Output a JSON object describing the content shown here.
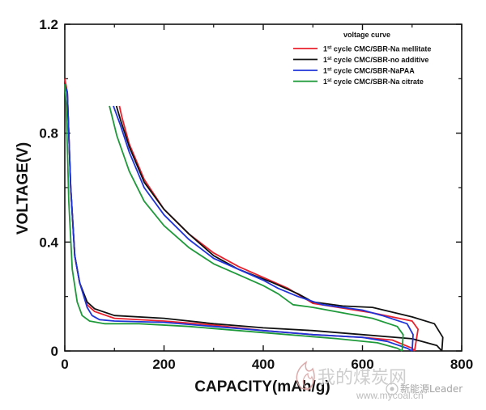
{
  "chart_data": {
    "type": "line",
    "xlabel": "CAPACITY(mAh/g)",
    "ylabel": "VOLTAGE(V)",
    "xlim": [
      0,
      800
    ],
    "ylim": [
      0,
      1.2
    ],
    "xticks": [
      "0",
      "200",
      "400",
      "600",
      "800"
    ],
    "yticks": [
      "0",
      "0.4",
      "0.8",
      "1.2"
    ],
    "xtick_values": [
      0,
      200,
      400,
      600,
      800
    ],
    "ytick_values": [
      0,
      0.4,
      0.8,
      1.2
    ],
    "legend_title": "voltage curve",
    "legend_placement": "top-right",
    "grid": false,
    "series": [
      {
        "name": "CMC/SBR-Na mellitate",
        "color": "#e8212d",
        "discharge": [
          [
            0,
            1.0
          ],
          [
            5,
            0.95
          ],
          [
            12,
            0.6
          ],
          [
            20,
            0.35
          ],
          [
            30,
            0.25
          ],
          [
            45,
            0.17
          ],
          [
            60,
            0.145
          ],
          [
            100,
            0.12
          ],
          [
            200,
            0.11
          ],
          [
            300,
            0.095
          ],
          [
            400,
            0.075
          ],
          [
            500,
            0.06
          ],
          [
            600,
            0.05
          ],
          [
            660,
            0.04
          ],
          [
            700,
            0.01
          ],
          [
            705,
            0
          ]
        ],
        "charge": [
          [
            705,
            0
          ],
          [
            712,
            0.08
          ],
          [
            700,
            0.11
          ],
          [
            620,
            0.14
          ],
          [
            500,
            0.175
          ],
          [
            450,
            0.23
          ],
          [
            400,
            0.27
          ],
          [
            350,
            0.31
          ],
          [
            300,
            0.36
          ],
          [
            250,
            0.43
          ],
          [
            200,
            0.52
          ],
          [
            160,
            0.63
          ],
          [
            130,
            0.76
          ],
          [
            115,
            0.86
          ],
          [
            110,
            0.9
          ]
        ]
      },
      {
        "name": "CMC/SBR-no additive",
        "color": "#111111",
        "discharge": [
          [
            0,
            0.98
          ],
          [
            5,
            0.95
          ],
          [
            12,
            0.6
          ],
          [
            20,
            0.35
          ],
          [
            30,
            0.25
          ],
          [
            45,
            0.18
          ],
          [
            60,
            0.155
          ],
          [
            100,
            0.13
          ],
          [
            200,
            0.12
          ],
          [
            300,
            0.1
          ],
          [
            400,
            0.085
          ],
          [
            500,
            0.075
          ],
          [
            600,
            0.06
          ],
          [
            700,
            0.045
          ],
          [
            750,
            0.02
          ],
          [
            760,
            0
          ]
        ],
        "charge": [
          [
            760,
            0
          ],
          [
            762,
            0.05
          ],
          [
            745,
            0.1
          ],
          [
            700,
            0.125
          ],
          [
            620,
            0.16
          ],
          [
            560,
            0.165
          ],
          [
            500,
            0.18
          ],
          [
            470,
            0.21
          ],
          [
            420,
            0.25
          ],
          [
            350,
            0.3
          ],
          [
            300,
            0.35
          ],
          [
            250,
            0.43
          ],
          [
            200,
            0.52
          ],
          [
            160,
            0.62
          ],
          [
            130,
            0.75
          ],
          [
            112,
            0.85
          ],
          [
            104,
            0.9
          ]
        ]
      },
      {
        "name": "CMC/SBR-NaPAA",
        "color": "#1f34d8",
        "discharge": [
          [
            0,
            0.98
          ],
          [
            5,
            0.95
          ],
          [
            12,
            0.6
          ],
          [
            20,
            0.35
          ],
          [
            30,
            0.25
          ],
          [
            45,
            0.16
          ],
          [
            55,
            0.13
          ],
          [
            70,
            0.115
          ],
          [
            100,
            0.11
          ],
          [
            200,
            0.105
          ],
          [
            300,
            0.09
          ],
          [
            400,
            0.075
          ],
          [
            500,
            0.06
          ],
          [
            600,
            0.05
          ],
          [
            650,
            0.035
          ],
          [
            690,
            0.01
          ],
          [
            700,
            0
          ]
        ],
        "charge": [
          [
            700,
            0
          ],
          [
            702,
            0.06
          ],
          [
            690,
            0.1
          ],
          [
            640,
            0.13
          ],
          [
            600,
            0.15
          ],
          [
            520,
            0.17
          ],
          [
            470,
            0.2
          ],
          [
            430,
            0.23
          ],
          [
            400,
            0.26
          ],
          [
            350,
            0.3
          ],
          [
            300,
            0.34
          ],
          [
            250,
            0.41
          ],
          [
            200,
            0.5
          ],
          [
            160,
            0.6
          ],
          [
            130,
            0.73
          ],
          [
            112,
            0.83
          ],
          [
            98,
            0.9
          ]
        ]
      },
      {
        "name": "CMC/SBR-Na citrate",
        "color": "#1f9a3a",
        "discharge": [
          [
            0,
            0.98
          ],
          [
            3,
            0.9
          ],
          [
            8,
            0.55
          ],
          [
            15,
            0.3
          ],
          [
            25,
            0.18
          ],
          [
            35,
            0.13
          ],
          [
            50,
            0.11
          ],
          [
            80,
            0.1
          ],
          [
            150,
            0.1
          ],
          [
            250,
            0.09
          ],
          [
            350,
            0.075
          ],
          [
            450,
            0.06
          ],
          [
            550,
            0.045
          ],
          [
            630,
            0.03
          ],
          [
            670,
            0.01
          ],
          [
            680,
            0
          ]
        ],
        "charge": [
          [
            680,
            0
          ],
          [
            682,
            0.06
          ],
          [
            670,
            0.09
          ],
          [
            620,
            0.12
          ],
          [
            560,
            0.14
          ],
          [
            500,
            0.16
          ],
          [
            460,
            0.17
          ],
          [
            430,
            0.21
          ],
          [
            400,
            0.24
          ],
          [
            350,
            0.28
          ],
          [
            300,
            0.32
          ],
          [
            250,
            0.38
          ],
          [
            200,
            0.46
          ],
          [
            160,
            0.55
          ],
          [
            130,
            0.66
          ],
          [
            105,
            0.79
          ],
          [
            90,
            0.9
          ]
        ]
      }
    ]
  },
  "watermark": {
    "main": "我的煤炭网",
    "url": "www.mycoal.cn",
    "badge": "新能源Leader"
  }
}
